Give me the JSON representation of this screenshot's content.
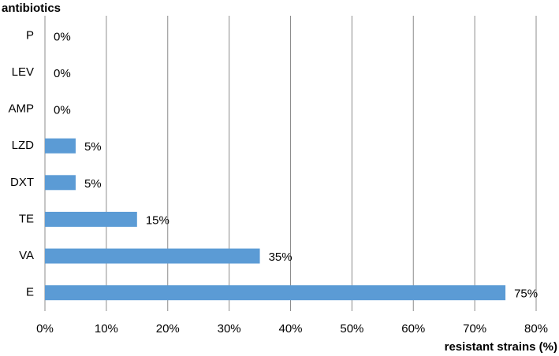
{
  "chart_data": {
    "type": "bar",
    "orientation": "horizontal",
    "y_axis_label": "antibiotics",
    "x_axis_label": "resistant strains (%)",
    "categories": [
      "P",
      "LEV",
      "AMP",
      "LZD",
      "DXT",
      "TE",
      "VA",
      "E"
    ],
    "values": [
      0,
      0,
      0,
      5,
      5,
      15,
      35,
      75
    ],
    "value_labels": [
      "0%",
      "0%",
      "0%",
      "5%",
      "5%",
      "15%",
      "35%",
      "75%"
    ],
    "color": "#5b9bd5",
    "xlim": [
      0,
      80
    ],
    "xticks": [
      {
        "value": 0,
        "label": "0%"
      },
      {
        "value": 10,
        "label": "10%"
      },
      {
        "value": 20,
        "label": "20%"
      },
      {
        "value": 30,
        "label": "30%"
      },
      {
        "value": 40,
        "label": "40%"
      },
      {
        "value": 50,
        "label": "50%"
      },
      {
        "value": 60,
        "label": "60%"
      },
      {
        "value": 70,
        "label": "70%"
      },
      {
        "value": 80,
        "label": "80%"
      }
    ],
    "grid": true
  }
}
